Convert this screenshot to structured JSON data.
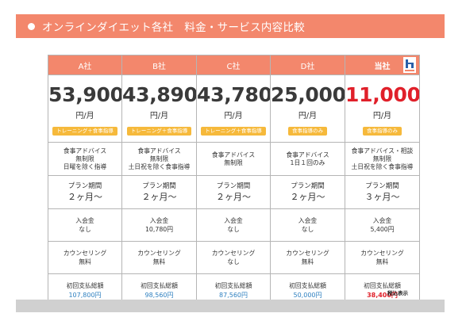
{
  "header": {
    "title": "オンラインダイエット各社　料金・サービス内容比較"
  },
  "colors": {
    "accent": "#f3876c",
    "tag": "#f6b93b",
    "highlight": "#e0202a",
    "total_blue": "#2f80c0"
  },
  "companies": [
    {
      "name": "A社",
      "price": "53,900",
      "unit": "円/月",
      "tag": "トレーニング＋食事指導",
      "advice": [
        "食事アドバイス",
        "無制限",
        "日曜を除く指導"
      ],
      "period_label": "プラン期間",
      "period": "２ヶ月〜",
      "fee_label": "入会金",
      "fee": "なし",
      "counsel_label": "カウンセリング",
      "counsel": "無料",
      "total_label": "初回支払総額",
      "total": "107,800円"
    },
    {
      "name": "B社",
      "price": "43,890",
      "unit": "円/月",
      "tag": "トレーニング＋食事指導",
      "advice": [
        "食事アドバイス",
        "無制限",
        "土日祝を除く食事指導"
      ],
      "period_label": "プラン期間",
      "period": "２ヶ月〜",
      "fee_label": "入会金",
      "fee": "10,780円",
      "counsel_label": "カウンセリング",
      "counsel": "無料",
      "total_label": "初回支払総額",
      "total": "98,560円"
    },
    {
      "name": "C社",
      "price": "43,780",
      "unit": "円/月",
      "tag": "トレーニング＋食事指導",
      "advice": [
        "食事アドバイス",
        "無制限"
      ],
      "period_label": "プラン期間",
      "period": "２ヶ月〜",
      "fee_label": "入会金",
      "fee": "なし",
      "counsel_label": "カウンセリング",
      "counsel": "なし",
      "total_label": "初回支払総額",
      "total": "87,560円"
    },
    {
      "name": "D社",
      "price": "25,000",
      "unit": "円/月",
      "tag": "食事指導のみ",
      "advice": [
        "食事アドバイス",
        "1日１回のみ"
      ],
      "period_label": "プラン期間",
      "period": "２ヶ月〜",
      "fee_label": "入会金",
      "fee": "なし",
      "counsel_label": "カウンセリング",
      "counsel": "無料",
      "total_label": "初回支払総額",
      "total": "50,000円"
    },
    {
      "name": "当社",
      "price": "11,000",
      "unit": "円/月",
      "tag": "食事指導のみ",
      "advice": [
        "食事アドバイス・相談",
        "無制限",
        "土日祝を除く食事指導"
      ],
      "period_label": "プラン期間",
      "period": "３ヶ月〜",
      "fee_label": "入会金",
      "fee": "5,400円",
      "counsel_label": "カウンセリング",
      "counsel": "無料",
      "total_label": "初回支払総額",
      "total": "38,400円"
    }
  ],
  "note": "税込表示"
}
